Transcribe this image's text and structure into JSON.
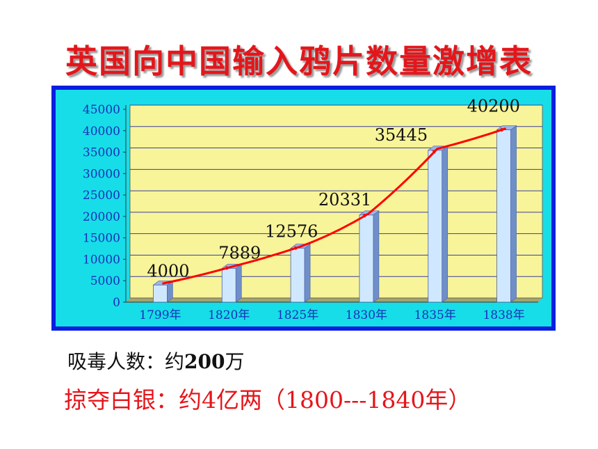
{
  "title": "英国向中国输入鸦片数量激增表",
  "chart_data": {
    "type": "bar",
    "categories": [
      "1799年",
      "1820年",
      "1825年",
      "1830年",
      "1835年",
      "1838年"
    ],
    "values": [
      4000,
      7889,
      12576,
      20331,
      35445,
      40200
    ],
    "data_labels": [
      "4000",
      "7889",
      "12576",
      "20331",
      "35445",
      "40200"
    ],
    "overlay": "line",
    "y_ticks": [
      "0",
      "5000",
      "10000",
      "15000",
      "20000",
      "25000",
      "30000",
      "35000",
      "40000",
      "45000"
    ],
    "ylim": [
      0,
      45000
    ],
    "grid": true,
    "xlabel": "",
    "ylabel": "",
    "colors": {
      "bar_front": "#cfe8ff",
      "bar_side": "#6f8fc9",
      "bar_top": "#98b6e8",
      "plot_bg": "#f8f49a",
      "frame_outer": "#0a1ee0",
      "frame_inner": "#17dde8",
      "line": "#ff0000",
      "axis_text": "#1a2fb8"
    }
  },
  "stats": {
    "addicts_label": "吸毒人数：约",
    "addicts_value": "200",
    "addicts_unit": "万",
    "silver_text": "掠夺白银：约4亿两（1800---1840年）"
  }
}
